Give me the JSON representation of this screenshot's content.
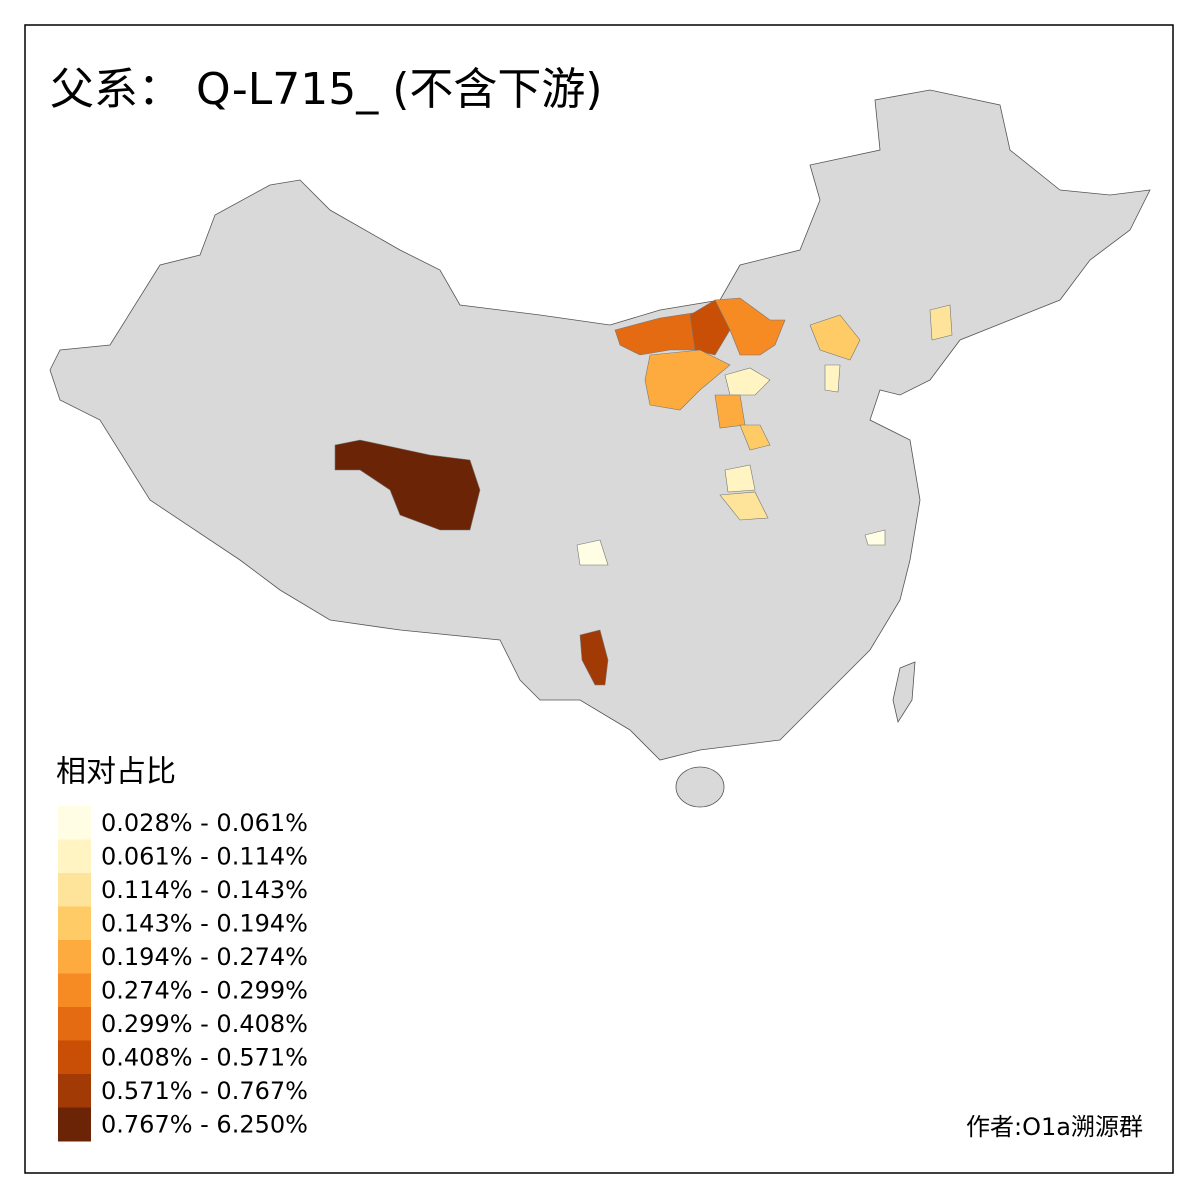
{
  "header": {
    "title": "父系： Q-L715_ (不含下游)"
  },
  "legend": {
    "title": "相对占比",
    "items": [
      {
        "label": "0.028% - 0.061%",
        "color": "#fffde3"
      },
      {
        "label": "0.061% - 0.114%",
        "color": "#fff4c2"
      },
      {
        "label": "0.114% - 0.143%",
        "color": "#fee39a"
      },
      {
        "label": "0.143% - 0.194%",
        "color": "#fecb66"
      },
      {
        "label": "0.194% - 0.274%",
        "color": "#fdab3f"
      },
      {
        "label": "0.274% - 0.299%",
        "color": "#f68a23"
      },
      {
        "label": "0.299% - 0.408%",
        "color": "#e46b12"
      },
      {
        "label": "0.408% - 0.571%",
        "color": "#c94e06"
      },
      {
        "label": "0.571% - 0.767%",
        "color": "#a23a05"
      },
      {
        "label": "0.767% - 6.250%",
        "color": "#6b2506"
      }
    ]
  },
  "credit": "作者:O1a溯源群"
}
